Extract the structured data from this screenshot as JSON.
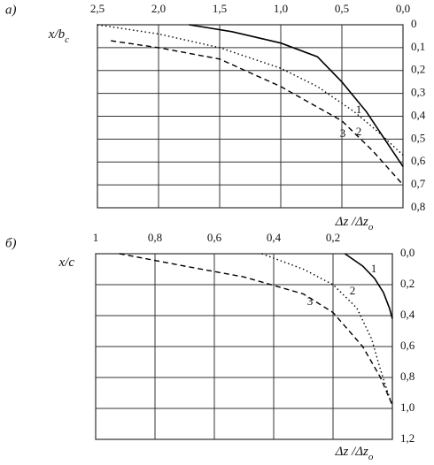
{
  "chart_data": [
    {
      "type": "line",
      "panel_label": "а)",
      "ylabel": "x/b",
      "ylabel_sub": "c",
      "xlabel": "Δz /Δz",
      "xlabel_sub": "o",
      "xlim": [
        2.5,
        0
      ],
      "ylim": [
        0,
        0.8
      ],
      "grid": true,
      "x_axis_position": "top",
      "y_axis_position": "right",
      "xticks": [
        {
          "value": 2.5,
          "label": "2,5"
        },
        {
          "value": 2,
          "label": "2,0"
        },
        {
          "value": 1.5,
          "label": "1,5"
        },
        {
          "value": 1,
          "label": "1,0"
        },
        {
          "value": 0.5,
          "label": "0,5"
        },
        {
          "value": 0,
          "label": "0,0"
        }
      ],
      "yticks": [
        0,
        {
          "value": 0.1,
          "label": "0,1"
        },
        {
          "value": 0.2,
          "label": "0,2"
        },
        {
          "value": 0.3,
          "label": "0,3"
        },
        {
          "value": 0.4,
          "label": "0,4"
        },
        {
          "value": 0.5,
          "label": "0,5"
        },
        {
          "value": 0.6,
          "label": "0,6"
        },
        {
          "value": 0.7,
          "label": "0,7"
        },
        {
          "value": 0.8,
          "label": "0,8"
        }
      ],
      "series": [
        {
          "name": "1",
          "color": "#000000",
          "dash": "solid",
          "x": [
            1.75,
            1.4,
            1.0,
            0.7,
            0.5,
            0.3,
            0.15,
            0
          ],
          "values": [
            0,
            0.03,
            0.08,
            0.14,
            0.25,
            0.38,
            0.5,
            0.62
          ]
        },
        {
          "name": "2",
          "color": "#000000",
          "dash": "dotted",
          "x": [
            2.5,
            2.0,
            1.5,
            1.0,
            0.7,
            0.4,
            0.2,
            0
          ],
          "values": [
            0,
            0.04,
            0.1,
            0.19,
            0.27,
            0.38,
            0.47,
            0.57
          ]
        },
        {
          "name": "3",
          "color": "#000000",
          "dash": "dashed",
          "x": [
            2.39,
            2.0,
            1.5,
            1.0,
            0.5,
            0.25,
            0
          ],
          "values": [
            0.07,
            0.1,
            0.15,
            0.27,
            0.42,
            0.55,
            0.7
          ]
        }
      ]
    },
    {
      "type": "line",
      "panel_label": "б)",
      "ylabel": "x/c",
      "xlabel": "Δz /Δz",
      "xlabel_sub": "o",
      "xlim": [
        1,
        0
      ],
      "ylim": [
        0,
        1.2
      ],
      "grid": true,
      "x_axis_position": "top",
      "y_axis_position": "right",
      "xticks": [
        1,
        {
          "value": 0.8,
          "label": "0,8"
        },
        {
          "value": 0.6,
          "label": "0,6"
        },
        {
          "value": 0.4,
          "label": "0,4"
        },
        {
          "value": 0.2,
          "label": "0,2"
        }
      ],
      "yticks": [
        {
          "value": 0,
          "label": "0,0"
        },
        {
          "value": 0.2,
          "label": "0,2"
        },
        {
          "value": 0.4,
          "label": "0,4"
        },
        {
          "value": 0.6,
          "label": "0,6"
        },
        {
          "value": 0.8,
          "label": "0,8"
        },
        {
          "value": 1,
          "label": "1,0"
        },
        {
          "value": 1.2,
          "label": "1,2"
        }
      ],
      "series": [
        {
          "name": "1",
          "color": "#000000",
          "dash": "solid",
          "x": [
            0.16,
            0.1,
            0.06,
            0.03,
            0.01,
            0
          ],
          "values": [
            0,
            0.08,
            0.16,
            0.25,
            0.35,
            0.42
          ]
        },
        {
          "name": "2",
          "color": "#000000",
          "dash": "dotted",
          "x": [
            0.44,
            0.3,
            0.2,
            0.12,
            0.07,
            0.04,
            0.015,
            0
          ],
          "values": [
            0,
            0.1,
            0.2,
            0.35,
            0.55,
            0.75,
            0.9,
            0.98
          ]
        },
        {
          "name": "3",
          "color": "#000000",
          "dash": "dashed",
          "x": [
            0.92,
            0.7,
            0.5,
            0.3,
            0.2,
            0.1,
            0.04,
            0
          ],
          "values": [
            0,
            0.08,
            0.15,
            0.26,
            0.38,
            0.6,
            0.8,
            0.98
          ]
        }
      ]
    }
  ]
}
